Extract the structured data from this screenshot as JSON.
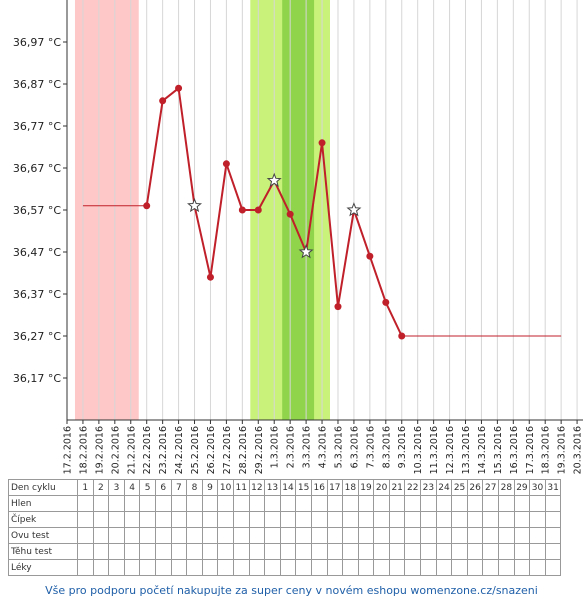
{
  "chart_data": {
    "type": "line",
    "y_ticks": [
      "36,97 °C",
      "36,87 °C",
      "36,77 °C",
      "36,67 °C",
      "36,57 °C",
      "36,47 °C",
      "36,37 °C",
      "36,27 °C",
      "36,17 °C"
    ],
    "y_tick_values": [
      36.97,
      36.87,
      36.77,
      36.67,
      36.57,
      36.47,
      36.37,
      36.27,
      36.17
    ],
    "ylim": [
      36.07,
      37.07
    ],
    "categories": [
      "17.2.2016",
      "18.2.2016",
      "19.2.2016",
      "20.2.2016",
      "21.2.2016",
      "22.2.2016",
      "23.2.2016",
      "24.2.2016",
      "25.2.2016",
      "26.2.2016",
      "27.2.2016",
      "28.2.2016",
      "29.2.2016",
      "1.3.2016",
      "2.3.2016",
      "3.3.2016",
      "4.3.2016",
      "5.3.2016",
      "6.3.2016",
      "7.3.2016",
      "8.3.2016",
      "9.3.2016",
      "10.3.2016",
      "11.3.2016",
      "12.3.2016",
      "13.3.2016",
      "14.3.2016",
      "15.3.2016",
      "16.3.2016",
      "17.3.2016",
      "18.3.2016",
      "19.3.2016",
      "20.3.2016"
    ],
    "series": [
      {
        "color": "#c0202a",
        "points": [
          {
            "x": "22.2.2016",
            "y": 36.58,
            "marker": "dot"
          },
          {
            "x": "23.2.2016",
            "y": 36.83,
            "marker": "dot"
          },
          {
            "x": "24.2.2016",
            "y": 36.86,
            "marker": "dot"
          },
          {
            "x": "25.2.2016",
            "y": 36.58,
            "marker": "star"
          },
          {
            "x": "26.2.2016",
            "y": 36.41,
            "marker": "dot"
          },
          {
            "x": "27.2.2016",
            "y": 36.68,
            "marker": "dot"
          },
          {
            "x": "28.2.2016",
            "y": 36.57,
            "marker": "dot"
          },
          {
            "x": "29.2.2016",
            "y": 36.57,
            "marker": "dot"
          },
          {
            "x": "1.3.2016",
            "y": 36.64,
            "marker": "star"
          },
          {
            "x": "2.3.2016",
            "y": 36.56,
            "marker": "dot"
          },
          {
            "x": "3.3.2016",
            "y": 36.47,
            "marker": "star"
          },
          {
            "x": "4.3.2016",
            "y": 36.73,
            "marker": "dot"
          },
          {
            "x": "5.3.2016",
            "y": 36.34,
            "marker": "dot"
          },
          {
            "x": "6.3.2016",
            "y": 36.57,
            "marker": "star"
          },
          {
            "x": "7.3.2016",
            "y": 36.46,
            "marker": "dot"
          },
          {
            "x": "8.3.2016",
            "y": 36.35,
            "marker": "dot"
          },
          {
            "x": "9.3.2016",
            "y": 36.27,
            "marker": "dot"
          }
        ]
      }
    ],
    "reference_lines": [
      {
        "from": "18.2.2016",
        "to": "22.2.2016",
        "y": 36.58,
        "color": "#c0202a"
      },
      {
        "from": "9.3.2016",
        "to": "19.3.2016",
        "y": 36.27,
        "color": "#c0202a"
      }
    ],
    "bands": [
      {
        "from": "18.2.2016",
        "to": "21.2.2016",
        "color": "#ffc8c8",
        "kind": "menstruation"
      },
      {
        "from": "29.2.2016",
        "to": "4.3.2016",
        "color": "#c8f27a",
        "kind": "fertile"
      },
      {
        "from": "2.3.2016",
        "to": "3.3.2016",
        "color": "#8fd44b",
        "kind": "peak"
      }
    ],
    "grid": true
  },
  "table": {
    "rows": [
      {
        "label": "Den cyklu",
        "cells": [
          "1",
          "2",
          "3",
          "4",
          "5",
          "6",
          "7",
          "8",
          "9",
          "10",
          "11",
          "12",
          "13",
          "14",
          "15",
          "16",
          "17",
          "18",
          "19",
          "20",
          "21",
          "22",
          "23",
          "24",
          "25",
          "26",
          "27",
          "28",
          "29",
          "30",
          "31"
        ]
      },
      {
        "label": "Hlen",
        "cells": []
      },
      {
        "label": "Čípek",
        "cells": []
      },
      {
        "label": "Ovu test",
        "cells": []
      },
      {
        "label": "Těhu test",
        "cells": []
      },
      {
        "label": "Léky",
        "cells": []
      }
    ]
  },
  "footer": {
    "link_text": "Vše pro podporu početí nakupujte za super ceny v novém eshopu womenzone.cz/snazeni"
  }
}
